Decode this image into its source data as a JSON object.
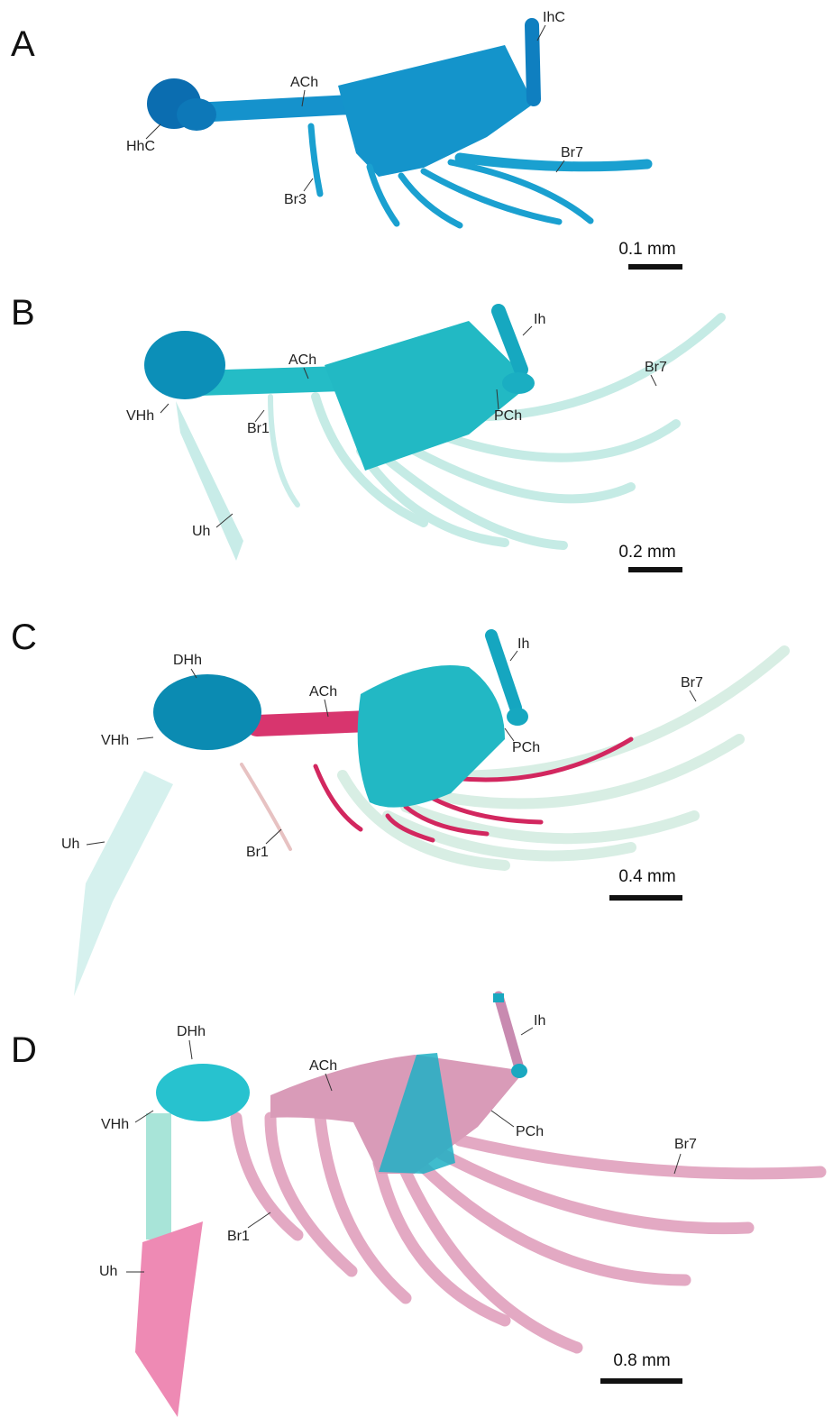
{
  "panels": [
    {
      "letter": "A",
      "labels": [
        "IhC",
        "ACh",
        "HhC",
        "Br3",
        "Br7"
      ],
      "scale_bar": "0.1 mm"
    },
    {
      "letter": "B",
      "labels": [
        "Ih",
        "ACh",
        "Br7",
        "VHh",
        "PCh",
        "Br1",
        "Uh"
      ],
      "scale_bar": "0.2 mm"
    },
    {
      "letter": "C",
      "labels": [
        "Ih",
        "DHh",
        "ACh",
        "Br7",
        "VHh",
        "PCh",
        "Uh",
        "Br1"
      ],
      "scale_bar": "0.4 mm"
    },
    {
      "letter": "D",
      "labels": [
        "Ih",
        "DHh",
        "ACh",
        "VHh",
        "PCh",
        "Br7",
        "Br1",
        "Uh"
      ],
      "scale_bar": "0.8 mm"
    }
  ]
}
